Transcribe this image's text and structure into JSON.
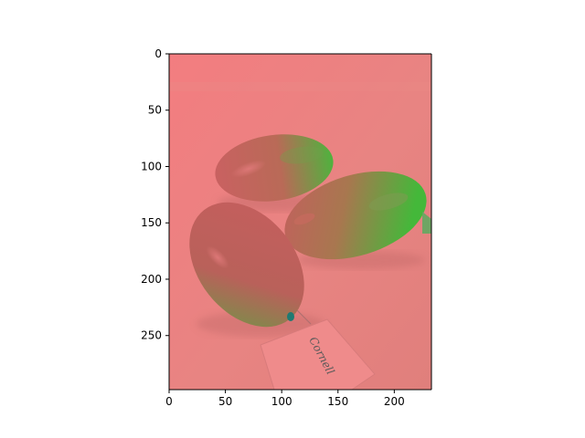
{
  "image": {
    "description_free": true,
    "xlim": [
      0,
      233
    ],
    "ylim": [
      298,
      0
    ],
    "x_ticks": [
      "0",
      "50",
      "100",
      "150",
      "200"
    ],
    "y_ticks": [
      "0",
      "50",
      "100",
      "150",
      "200",
      "250"
    ],
    "x_tick_values": [
      0,
      50,
      100,
      150,
      200
    ],
    "y_tick_values": [
      0,
      50,
      100,
      150,
      200,
      250
    ],
    "colors": {
      "background": "#f08080",
      "background_dark": "#e37f7c",
      "fruit_red": "#c96060",
      "fruit_green": "#43c237",
      "shadow": "#d67474",
      "tag": "#ef8a8a",
      "tag_ink": "#5a5a5a",
      "axis": "#000000",
      "figure_bg": "#ffffff"
    },
    "tag_text": "Cornell"
  }
}
